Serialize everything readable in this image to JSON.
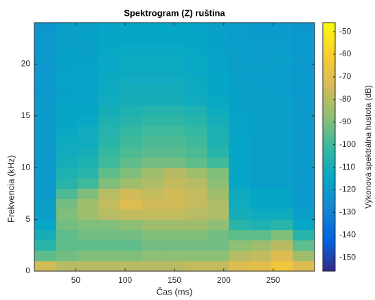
{
  "chart_data": {
    "type": "heatmap",
    "title": "Spektrogram (Z) ruština",
    "x_label": "Čas (ms)",
    "y_label": "Frekvencia (kHz)",
    "colorbar_label": "Výkonová spektrálna hustota (dB)",
    "colormap": "parula",
    "x_edges": [
      8,
      30,
      52,
      73,
      95,
      117,
      139,
      161,
      183,
      205,
      227,
      248,
      270,
      292
    ],
    "y_edges": [
      0,
      1,
      2,
      3,
      4,
      5,
      6,
      7,
      8,
      9,
      10,
      11,
      12,
      13,
      14,
      15,
      16,
      17,
      18,
      19,
      20,
      21,
      22,
      23,
      24
    ],
    "z": [
      [
        -75,
        -80,
        -80,
        -80,
        -80,
        -80,
        -80,
        -78,
        -78,
        -72,
        -70,
        -65,
        -72
      ],
      [
        -95,
        -92,
        -90,
        -90,
        -90,
        -88,
        -88,
        -88,
        -88,
        -80,
        -78,
        -72,
        -85
      ],
      [
        -105,
        -95,
        -95,
        -95,
        -95,
        -92,
        -92,
        -92,
        -92,
        -88,
        -85,
        -80,
        -95
      ],
      [
        -110,
        -95,
        -92,
        -92,
        -92,
        -90,
        -90,
        -90,
        -92,
        -95,
        -95,
        -90,
        -105
      ],
      [
        -115,
        -92,
        -90,
        -90,
        -88,
        -85,
        -85,
        -85,
        -88,
        -105,
        -108,
        -105,
        -115
      ],
      [
        -118,
        -90,
        -85,
        -80,
        -78,
        -78,
        -78,
        -80,
        -82,
        -110,
        -112,
        -112,
        -118
      ],
      [
        -118,
        -92,
        -85,
        -78,
        -72,
        -75,
        -75,
        -78,
        -82,
        -112,
        -115,
        -115,
        -120
      ],
      [
        -120,
        -98,
        -90,
        -80,
        -75,
        -78,
        -75,
        -78,
        -85,
        -112,
        -115,
        -115,
        -120
      ],
      [
        -120,
        -105,
        -100,
        -90,
        -85,
        -82,
        -78,
        -80,
        -88,
        -115,
        -118,
        -118,
        -120
      ],
      [
        -120,
        -108,
        -105,
        -95,
        -90,
        -85,
        -80,
        -85,
        -90,
        -115,
        -118,
        -118,
        -120
      ],
      [
        -120,
        -110,
        -108,
        -100,
        -95,
        -92,
        -92,
        -95,
        -100,
        -115,
        -118,
        -118,
        -120
      ],
      [
        -120,
        -112,
        -110,
        -102,
        -98,
        -96,
        -96,
        -98,
        -105,
        -115,
        -118,
        -118,
        -120
      ],
      [
        -120,
        -112,
        -112,
        -105,
        -100,
        -98,
        -98,
        -100,
        -108,
        -115,
        -118,
        -118,
        -120
      ],
      [
        -120,
        -114,
        -112,
        -106,
        -102,
        -100,
        -100,
        -102,
        -108,
        -116,
        -118,
        -118,
        -120
      ],
      [
        -120,
        -115,
        -114,
        -108,
        -105,
        -103,
        -103,
        -105,
        -110,
        -116,
        -118,
        -118,
        -120
      ],
      [
        -120,
        -115,
        -115,
        -110,
        -108,
        -106,
        -106,
        -108,
        -112,
        -117,
        -118,
        -118,
        -120
      ],
      [
        -120,
        -116,
        -116,
        -112,
        -110,
        -110,
        -110,
        -112,
        -114,
        -117,
        -118,
        -118,
        -120
      ],
      [
        -121,
        -117,
        -116,
        -113,
        -111,
        -111,
        -111,
        -113,
        -115,
        -117,
        -118,
        -119,
        -121
      ],
      [
        -120,
        -116,
        -117,
        -113,
        -112,
        -112,
        -112,
        -113,
        -115,
        -118,
        -119,
        -118,
        -120
      ],
      [
        -121,
        -117,
        -116,
        -114,
        -113,
        -113,
        -113,
        -114,
        -116,
        -118,
        -118,
        -119,
        -121
      ],
      [
        -120,
        -117,
        -117,
        -114,
        -113,
        -113,
        -113,
        -114,
        -116,
        -118,
        -119,
        -118,
        -120
      ],
      [
        -121,
        -117,
        -118,
        -115,
        -114,
        -114,
        -114,
        -115,
        -117,
        -118,
        -119,
        -119,
        -121
      ],
      [
        -121,
        -118,
        -117,
        -115,
        -115,
        -115,
        -115,
        -115,
        -117,
        -119,
        -119,
        -119,
        -121
      ],
      [
        -122,
        -118,
        -118,
        -116,
        -115,
        -115,
        -115,
        -116,
        -118,
        -119,
        -120,
        -120,
        -122
      ]
    ],
    "xlim": [
      8,
      292
    ],
    "xticks": [
      50,
      100,
      150,
      200,
      250
    ],
    "ylim": [
      0,
      24
    ],
    "yticks": [
      0,
      5,
      10,
      15,
      20
    ],
    "clim": [
      -156,
      -46
    ],
    "cticks": [
      -150,
      -140,
      -130,
      -120,
      -110,
      -100,
      -90,
      -80,
      -70,
      -60,
      -50
    ]
  }
}
